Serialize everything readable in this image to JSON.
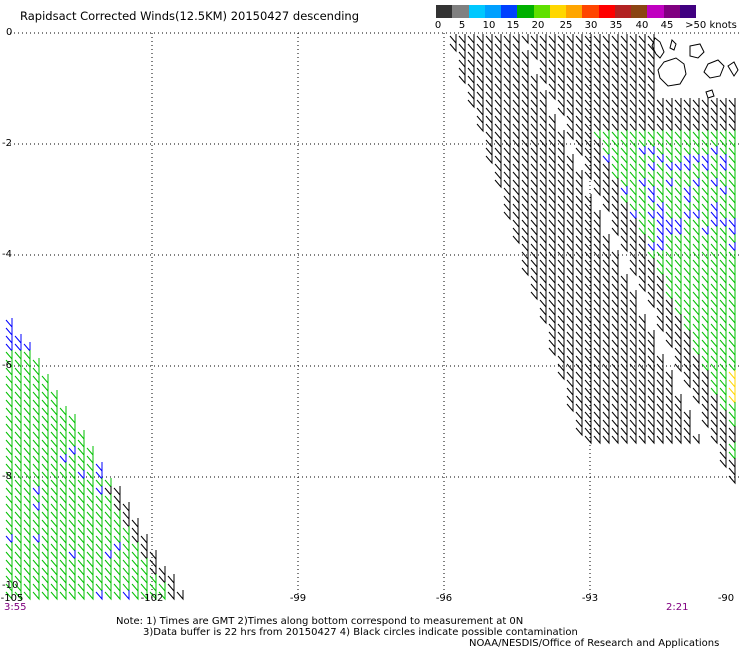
{
  "title": "Rapidsact Corrected Winds(12.5KM) 20150427 descending",
  "legend": {
    "colors": [
      "#333333",
      "#808080",
      "#00c8ff",
      "#00a0ff",
      "#0040ff",
      "#00b000",
      "#60e000",
      "#ffd700",
      "#ffa500",
      "#ff4500",
      "#ff0000",
      "#b22222",
      "#8b4513",
      "#c000c0",
      "#800080",
      "#400080"
    ],
    "labels": [
      "0",
      "5",
      "10",
      "15",
      "20",
      "25",
      "30",
      "35",
      "40",
      "45",
      ">50 knots"
    ]
  },
  "axes": {
    "lat_labels": [
      "0",
      "-2",
      "-4",
      "-6",
      "-8",
      "-10"
    ],
    "lon_labels": [
      "-105",
      "-102",
      "-99",
      "-96",
      "-93",
      "-90"
    ]
  },
  "times": {
    "left": "3:55",
    "right": "2:21"
  },
  "notes": {
    "line1": "Note: 1) Times are GMT 2)Times along bottom correspond to measurement at 0N",
    "line2": "3)Data buffer is 22 hrs from 20150427 4) Black circles indicate possible contamination",
    "line3": "NOAA/NESDIS/Office of Research and Applications"
  },
  "wind_colors": {
    "calm": "#000000",
    "moderate": "#00c000",
    "strong": "#0000ff",
    "high": "#ffd700"
  }
}
